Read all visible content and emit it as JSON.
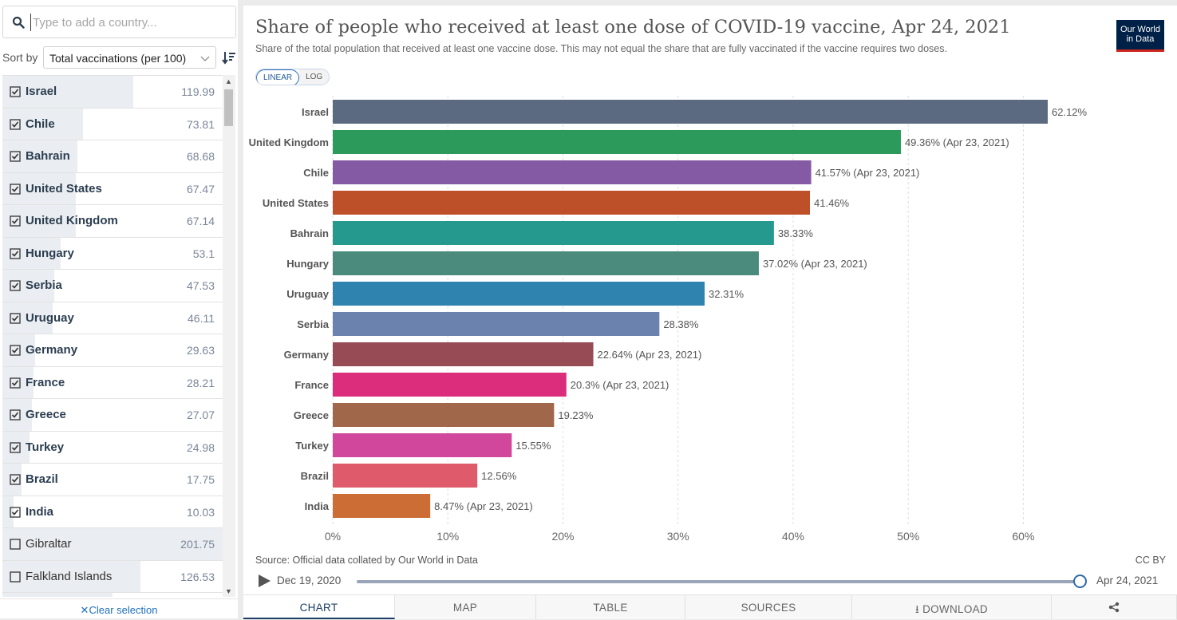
{
  "sidebar": {
    "search_placeholder": "Type to add a country...",
    "sort_by_label": "Sort by",
    "sort_value": "Total vaccinations (per 100)",
    "clear_selection": "Clear selection",
    "countries": [
      {
        "name": "Israel",
        "value": "119.99",
        "selected": true,
        "share": 0.595
      },
      {
        "name": "Chile",
        "value": "73.81",
        "selected": true,
        "share": 0.366
      },
      {
        "name": "Bahrain",
        "value": "68.68",
        "selected": true,
        "share": 0.34
      },
      {
        "name": "United States",
        "value": "67.47",
        "selected": true,
        "share": 0.334
      },
      {
        "name": "United Kingdom",
        "value": "67.14",
        "selected": true,
        "share": 0.333
      },
      {
        "name": "Hungary",
        "value": "53.1",
        "selected": true,
        "share": 0.263
      },
      {
        "name": "Serbia",
        "value": "47.53",
        "selected": true,
        "share": 0.236
      },
      {
        "name": "Uruguay",
        "value": "46.11",
        "selected": true,
        "share": 0.229
      },
      {
        "name": "Germany",
        "value": "29.63",
        "selected": true,
        "share": 0.147
      },
      {
        "name": "France",
        "value": "28.21",
        "selected": true,
        "share": 0.14
      },
      {
        "name": "Greece",
        "value": "27.07",
        "selected": true,
        "share": 0.134
      },
      {
        "name": "Turkey",
        "value": "24.98",
        "selected": true,
        "share": 0.124
      },
      {
        "name": "Brazil",
        "value": "17.75",
        "selected": true,
        "share": 0.088
      },
      {
        "name": "India",
        "value": "10.03",
        "selected": true,
        "share": 0.05
      },
      {
        "name": "Gibraltar",
        "value": "201.75",
        "selected": false,
        "share": 1.0
      },
      {
        "name": "Falkland Islands",
        "value": "126.53",
        "selected": false,
        "share": 0.627
      },
      {
        "name": "",
        "value": "",
        "selected": false,
        "share": 0.5
      }
    ]
  },
  "header": {
    "title": "Share of people who received at least one dose of COVID-19 vaccine, Apr 24, 2021",
    "subtitle": "Share of the total population that received at least one vaccine dose. This may not equal the share that are fully vaccinated if the vaccine requires two doses.",
    "logo_line1": "Our World",
    "logo_line2": "in Data",
    "scale_linear": "LINEAR",
    "scale_log": "LOG"
  },
  "chart_data": {
    "type": "bar",
    "orientation": "horizontal",
    "categories": [
      "Israel",
      "United Kingdom",
      "Chile",
      "United States",
      "Bahrain",
      "Hungary",
      "Uruguay",
      "Serbia",
      "Germany",
      "France",
      "Greece",
      "Turkey",
      "Brazil",
      "India"
    ],
    "values": [
      62.12,
      49.36,
      41.57,
      41.46,
      38.33,
      37.02,
      32.31,
      28.38,
      22.64,
      20.3,
      19.23,
      15.55,
      12.56,
      8.47
    ],
    "value_labels": [
      "62.12%",
      "49.36% (Apr 23, 2021)",
      "41.57% (Apr 23, 2021)",
      "41.46%",
      "38.33%",
      "37.02% (Apr 23, 2021)",
      "32.31%",
      "28.38%",
      "22.64% (Apr 23, 2021)",
      "20.3% (Apr 23, 2021)",
      "19.23%",
      "15.55%",
      "12.56%",
      "8.47% (Apr 23, 2021)"
    ],
    "colors": [
      "#5b6a80",
      "#2b9a5b",
      "#855aa5",
      "#bd5028",
      "#26998f",
      "#4b8b7d",
      "#2f84af",
      "#6b82ae",
      "#974c55",
      "#db2d7b",
      "#a0674a",
      "#d0479c",
      "#df5a6b",
      "#cb6d35"
    ],
    "xlim": [
      0,
      62.12
    ],
    "xticks": [
      0,
      10,
      20,
      30,
      40,
      50,
      60
    ],
    "xtick_labels": [
      "0%",
      "10%",
      "20%",
      "30%",
      "40%",
      "50%",
      "60%"
    ],
    "grid": "vertical dashed"
  },
  "footer": {
    "source": "Source: Official data collated by Our World in Data",
    "license": "CC BY",
    "timeline_start": "Dec 19, 2020",
    "timeline_end": "Apr 24, 2021",
    "timeline_position": 1.0
  },
  "tabs": [
    {
      "label": "CHART",
      "active": true
    },
    {
      "label": "MAP",
      "active": false
    },
    {
      "label": "TABLE",
      "active": false
    },
    {
      "label": "SOURCES",
      "active": false
    },
    {
      "label": "DOWNLOAD",
      "active": false
    },
    {
      "label": "",
      "active": false
    }
  ]
}
